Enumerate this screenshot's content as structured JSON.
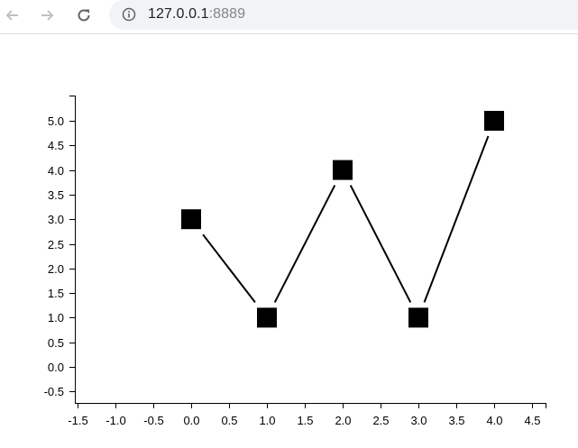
{
  "browser": {
    "back_icon": "arrow-left-icon",
    "forward_icon": "arrow-right-icon",
    "reload_icon": "reload-icon",
    "info_icon": "info-icon",
    "url_host": "127.0.0.1",
    "url_port": ":8889"
  },
  "chart_data": {
    "type": "line",
    "x": [
      0,
      1,
      2,
      3,
      4
    ],
    "series": [
      {
        "values": [
          3,
          1,
          4,
          1,
          5
        ]
      }
    ],
    "marker": "square",
    "line_color": "#000000",
    "marker_color": "#000000",
    "xlim": [
      -1.5,
      4.5
    ],
    "ylim": [
      -0.5,
      5.0
    ],
    "x_ticks": [
      "-1.5",
      "-1.0",
      "-0.5",
      "0.0",
      "0.5",
      "1.0",
      "1.5",
      "2.0",
      "2.5",
      "3.0",
      "3.5",
      "4.0",
      "4.5"
    ],
    "y_ticks": [
      "-0.5",
      "0.0",
      "0.5",
      "1.0",
      "1.5",
      "2.0",
      "2.5",
      "3.0",
      "3.5",
      "4.0",
      "4.5",
      "5.0"
    ],
    "title": "",
    "xlabel": "",
    "ylabel": "",
    "grid": false
  }
}
